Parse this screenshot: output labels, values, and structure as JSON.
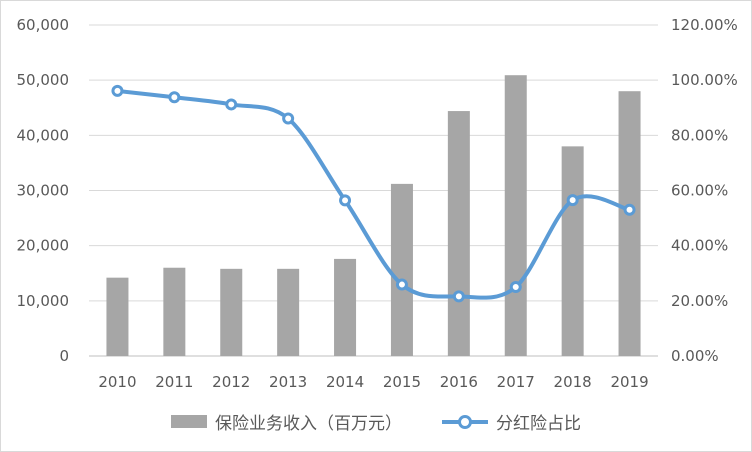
{
  "chart_data": {
    "type": "bar+line",
    "categories": [
      "2010",
      "2011",
      "2012",
      "2013",
      "2014",
      "2015",
      "2016",
      "2017",
      "2018",
      "2019"
    ],
    "series": [
      {
        "name": "保险业务收入（百万元）",
        "type": "bar",
        "axis": "left",
        "color": "#a6a6a6",
        "values": [
          14200,
          16000,
          15800,
          15800,
          17600,
          31200,
          44400,
          50900,
          38000,
          48000
        ]
      },
      {
        "name": "分红险占比",
        "type": "line",
        "axis": "right",
        "color": "#5b9bd5",
        "values": [
          96.1,
          93.8,
          91.2,
          86.1,
          56.4,
          25.9,
          21.6,
          25.0,
          56.5,
          53.0
        ]
      }
    ],
    "y_left": {
      "min": 0,
      "max": 60000,
      "ticks": [
        "0",
        "10,000",
        "20,000",
        "30,000",
        "40,000",
        "50,000",
        "60,000"
      ]
    },
    "y_right": {
      "min": 0,
      "max": 120,
      "ticks": [
        "0.00%",
        "20.00%",
        "40.00%",
        "60.00%",
        "80.00%",
        "100.00%",
        "120.00%"
      ]
    },
    "grid": true,
    "legend_position": "bottom"
  }
}
